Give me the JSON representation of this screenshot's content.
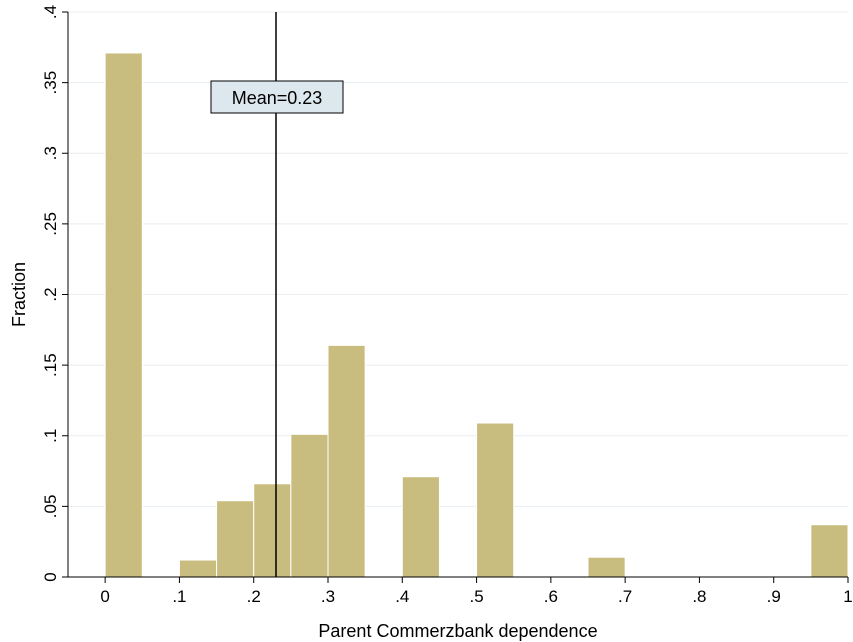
{
  "chart_data": {
    "type": "bar",
    "subtype": "histogram",
    "xlabel": "Parent Commerzbank dependence",
    "ylabel": "Fraction",
    "xlim": [
      -0.05,
      1.0
    ],
    "ylim": [
      0,
      0.4
    ],
    "x_ticks": [
      {
        "value": 0,
        "label": "0"
      },
      {
        "value": 0.1,
        "label": ".1"
      },
      {
        "value": 0.2,
        "label": ".2"
      },
      {
        "value": 0.3,
        "label": ".3"
      },
      {
        "value": 0.4,
        "label": ".4"
      },
      {
        "value": 0.5,
        "label": ".5"
      },
      {
        "value": 0.6,
        "label": ".6"
      },
      {
        "value": 0.7,
        "label": ".7"
      },
      {
        "value": 0.8,
        "label": ".8"
      },
      {
        "value": 0.9,
        "label": ".9"
      },
      {
        "value": 1,
        "label": "1"
      }
    ],
    "y_ticks": [
      {
        "value": 0,
        "label": "0"
      },
      {
        "value": 0.05,
        "label": ".05"
      },
      {
        "value": 0.1,
        "label": ".1"
      },
      {
        "value": 0.15,
        "label": ".15"
      },
      {
        "value": 0.2,
        "label": ".2"
      },
      {
        "value": 0.25,
        "label": ".25"
      },
      {
        "value": 0.3,
        "label": ".3"
      },
      {
        "value": 0.35,
        "label": ".35"
      },
      {
        "value": 0.4,
        "label": ".4"
      }
    ],
    "bins": [
      {
        "x0": 0.0,
        "x1": 0.05,
        "value": 0.371
      },
      {
        "x0": 0.1,
        "x1": 0.15,
        "value": 0.012
      },
      {
        "x0": 0.15,
        "x1": 0.2,
        "value": 0.054
      },
      {
        "x0": 0.2,
        "x1": 0.25,
        "value": 0.066
      },
      {
        "x0": 0.25,
        "x1": 0.3,
        "value": 0.101
      },
      {
        "x0": 0.3,
        "x1": 0.35,
        "value": 0.164
      },
      {
        "x0": 0.4,
        "x1": 0.45,
        "value": 0.071
      },
      {
        "x0": 0.5,
        "x1": 0.55,
        "value": 0.109
      },
      {
        "x0": 0.65,
        "x1": 0.7,
        "value": 0.014
      },
      {
        "x0": 0.95,
        "x1": 1.0,
        "value": 0.037
      }
    ],
    "mean_line": {
      "value": 0.23,
      "label": "Mean=0.23"
    },
    "grid": true,
    "colors": {
      "bar_fill": "#c8bd7e",
      "bar_stroke": "#ffffff",
      "grid": "#e8eef2",
      "annotation_fill": "#dde8ee",
      "axis": "#000000"
    }
  }
}
